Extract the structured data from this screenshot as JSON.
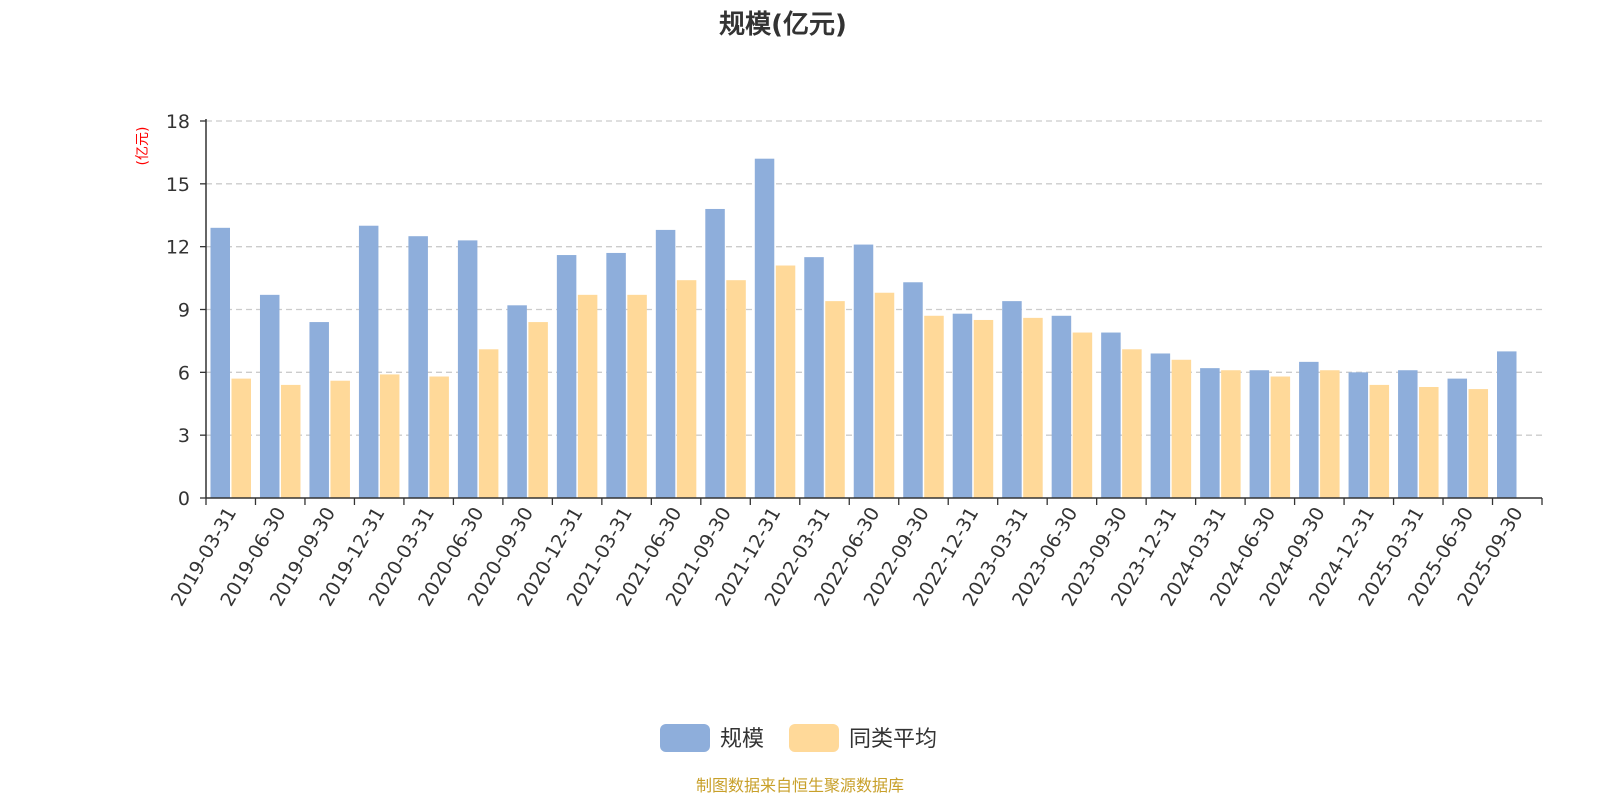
{
  "chart_data": {
    "type": "bar",
    "title": "规模(亿元)",
    "ylabel": "(亿元)",
    "ylim": [
      0,
      18
    ],
    "yticks": [
      0,
      3,
      6,
      9,
      12,
      15,
      18
    ],
    "grid": true,
    "legend_position": "bottom",
    "categories": [
      "2019-03-31",
      "2019-06-30",
      "2019-09-30",
      "2019-12-31",
      "2020-03-31",
      "2020-06-30",
      "2020-09-30",
      "2020-12-31",
      "2021-03-31",
      "2021-06-30",
      "2021-09-30",
      "2021-12-31",
      "2022-03-31",
      "2022-06-30",
      "2022-09-30",
      "2022-12-31",
      "2023-03-31",
      "2023-06-30",
      "2023-09-30",
      "2023-12-31",
      "2024-03-31",
      "2024-06-30",
      "2024-09-30",
      "2024-12-31",
      "2025-03-31",
      "2025-06-30",
      "2025-09-30"
    ],
    "series": [
      {
        "name": "规模",
        "color": "#8eaedb",
        "values": [
          12.9,
          9.7,
          8.4,
          13.0,
          12.5,
          12.3,
          9.2,
          11.6,
          11.7,
          12.8,
          13.8,
          16.2,
          11.5,
          12.1,
          10.3,
          8.8,
          9.4,
          8.7,
          7.9,
          6.9,
          6.2,
          6.1,
          6.5,
          6.0,
          6.1,
          5.7,
          7.0
        ]
      },
      {
        "name": "同类平均",
        "color": "#ffd999",
        "values": [
          5.7,
          5.4,
          5.6,
          5.9,
          5.8,
          7.1,
          8.4,
          9.7,
          9.7,
          10.4,
          10.4,
          11.1,
          9.4,
          9.8,
          8.7,
          8.5,
          8.6,
          7.9,
          7.1,
          6.6,
          6.1,
          5.8,
          6.1,
          5.4,
          5.3,
          5.2,
          null
        ]
      }
    ]
  },
  "colors": {
    "title": "#333333",
    "unit_label": "#ff0000",
    "axis": "#333333",
    "grid": "#cccccc",
    "source": "#c8a02a"
  },
  "source_text": "制图数据来自恒生聚源数据库"
}
